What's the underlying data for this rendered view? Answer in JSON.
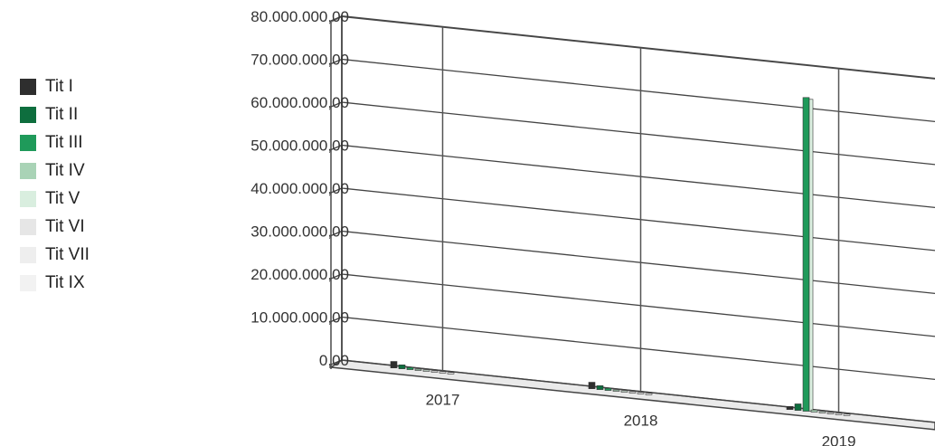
{
  "chart_data": {
    "type": "bar",
    "title": "",
    "xlabel": "",
    "ylabel": "",
    "categories": [
      "2017",
      "2018",
      "2019"
    ],
    "ylim": [
      0,
      80000000
    ],
    "yticks": [
      "0,00",
      "10.000.000,00",
      "20.000.000,00",
      "30.000.000,00",
      "40.000.000,00",
      "50.000.000,00",
      "60.000.000,00",
      "70.000.000,00",
      "80.000.000,00"
    ],
    "grid": true,
    "legend_position": "left",
    "series": [
      {
        "name": "Tit I",
        "color": "#2e2e2e",
        "values": [
          1500000,
          1500000,
          700000
        ]
      },
      {
        "name": "Tit II",
        "color": "#0e6e3e",
        "values": [
          900000,
          900000,
          1500000
        ]
      },
      {
        "name": "Tit III",
        "color": "#1f9a5a",
        "values": [
          500000,
          500000,
          73000000
        ]
      },
      {
        "name": "Tit IV",
        "color": "#a9d3b6",
        "values": [
          300000,
          300000,
          500000
        ]
      },
      {
        "name": "Tit V",
        "color": "#d9eedf",
        "values": [
          200000,
          200000,
          300000
        ]
      },
      {
        "name": "Tit VI",
        "color": "#e6e6e6",
        "values": [
          200000,
          200000,
          200000
        ]
      },
      {
        "name": "Tit VII",
        "color": "#eeeeee",
        "values": [
          100000,
          100000,
          100000
        ]
      },
      {
        "name": "Tit IX",
        "color": "#f2f2f2",
        "values": [
          100000,
          100000,
          100000
        ]
      }
    ]
  }
}
